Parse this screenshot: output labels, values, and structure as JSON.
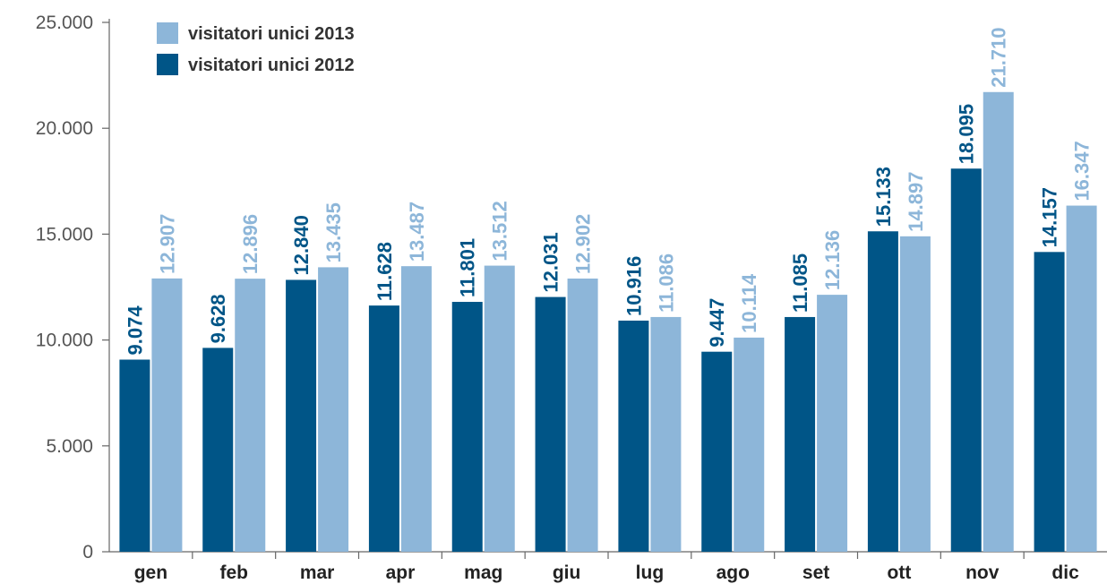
{
  "chart_data": {
    "type": "bar",
    "title": "",
    "xlabel": "",
    "ylabel": "",
    "ylim": [
      0,
      25000
    ],
    "yticks": [
      0,
      5000,
      10000,
      15000,
      20000,
      25000
    ],
    "ytick_labels": [
      "0",
      "5.000",
      "10.000",
      "15.000",
      "20.000",
      "25.000"
    ],
    "grid": false,
    "legend_position": "top-left",
    "categories": [
      "gen",
      "feb",
      "mar",
      "apr",
      "mag",
      "giu",
      "lug",
      "ago",
      "set",
      "ott",
      "nov",
      "dic"
    ],
    "series": [
      {
        "name": "visitatori unici 2012",
        "color": "#005587",
        "values": [
          9074,
          9628,
          12840,
          11628,
          11801,
          12031,
          10916,
          9447,
          11085,
          15133,
          18095,
          14157
        ],
        "labels": [
          "9.074",
          "9.628",
          "12.840",
          "11.628",
          "11.801",
          "12.031",
          "10.916",
          "9.447",
          "11.085",
          "15.133",
          "18.095",
          "14.157"
        ]
      },
      {
        "name": "visitatori unici 2013",
        "color": "#8db6d9",
        "values": [
          12907,
          12896,
          13435,
          13487,
          13512,
          12902,
          11086,
          10114,
          12136,
          14897,
          21710,
          16347
        ],
        "labels": [
          "12.907",
          "12.896",
          "13.435",
          "13.487",
          "13.512",
          "12.902",
          "11.086",
          "10.114",
          "12.136",
          "14.897",
          "21.710",
          "16.347"
        ]
      }
    ],
    "legend_order": [
      1,
      0
    ]
  }
}
